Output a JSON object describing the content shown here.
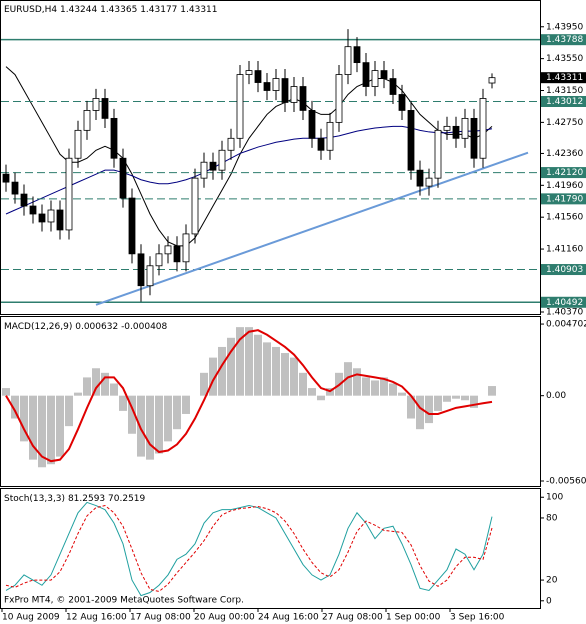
{
  "chart_data": [
    {
      "type": "candlestick",
      "title": "EURUSD,H4",
      "open": [
        1.421,
        1.42,
        1.4185,
        1.417,
        1.416,
        1.415,
        1.4165,
        1.414,
        1.423,
        1.4265,
        1.429,
        1.4305,
        1.428,
        1.423,
        1.418,
        1.411,
        1.407,
        1.4095,
        1.411,
        1.412,
        1.41,
        1.4135,
        1.4205,
        1.4225,
        1.4215,
        1.424,
        1.4255,
        1.4335,
        1.434,
        1.4325,
        1.4315,
        1.433,
        1.43,
        1.432,
        1.429,
        1.4255,
        1.424,
        1.4275,
        1.4335,
        1.437,
        1.435,
        1.432,
        1.434,
        1.433,
        1.431,
        1.429,
        1.4215,
        1.4195,
        1.4205,
        1.4265,
        1.427,
        1.4255,
        1.428,
        1.423,
        1.43244
      ],
      "high": [
        1.4222,
        1.4212,
        1.4197,
        1.4182,
        1.4172,
        1.4177,
        1.4177,
        1.4242,
        1.4277,
        1.4302,
        1.4317,
        1.4317,
        1.4292,
        1.4242,
        1.4192,
        1.4122,
        1.4107,
        1.4122,
        1.4132,
        1.4132,
        1.4147,
        1.4217,
        1.4237,
        1.4237,
        1.4252,
        1.4267,
        1.4347,
        1.4352,
        1.4352,
        1.4337,
        1.4342,
        1.4342,
        1.4332,
        1.4332,
        1.4302,
        1.4267,
        1.4287,
        1.4347,
        1.4392,
        1.4382,
        1.4362,
        1.4352,
        1.4352,
        1.4342,
        1.4322,
        1.4302,
        1.4227,
        1.4217,
        1.4277,
        1.4282,
        1.4282,
        1.4292,
        1.4292,
        1.4317,
        1.43365
      ],
      "low": [
        1.4188,
        1.4173,
        1.4158,
        1.4148,
        1.4138,
        1.4138,
        1.4128,
        1.4128,
        1.4218,
        1.4253,
        1.4278,
        1.4268,
        1.4218,
        1.4168,
        1.4098,
        1.405,
        1.4058,
        1.4083,
        1.4098,
        1.4088,
        1.4088,
        1.4123,
        1.4193,
        1.4203,
        1.4203,
        1.4228,
        1.4243,
        1.4323,
        1.4313,
        1.4303,
        1.4303,
        1.4288,
        1.4288,
        1.4278,
        1.4243,
        1.4228,
        1.4228,
        1.4263,
        1.4323,
        1.4338,
        1.4308,
        1.4308,
        1.4318,
        1.4298,
        1.4278,
        1.4203,
        1.4183,
        1.4183,
        1.4193,
        1.4253,
        1.4243,
        1.4243,
        1.4218,
        1.4218,
        1.43177
      ],
      "close": [
        1.42,
        1.4185,
        1.417,
        1.416,
        1.415,
        1.4165,
        1.414,
        1.423,
        1.4265,
        1.429,
        1.4305,
        1.428,
        1.423,
        1.418,
        1.411,
        1.407,
        1.4095,
        1.411,
        1.412,
        1.41,
        1.4135,
        1.4205,
        1.4225,
        1.4215,
        1.424,
        1.4255,
        1.4335,
        1.434,
        1.4325,
        1.4315,
        1.433,
        1.43,
        1.432,
        1.429,
        1.4255,
        1.424,
        1.4275,
        1.4335,
        1.437,
        1.435,
        1.432,
        1.434,
        1.433,
        1.431,
        1.429,
        1.4215,
        1.4195,
        1.4205,
        1.4265,
        1.427,
        1.4255,
        1.428,
        1.423,
        1.4305,
        1.43311
      ],
      "lines": [
        {
          "color": "#000000",
          "values": [
            1.4345,
            1.4335,
            1.4315,
            1.4295,
            1.4275,
            1.4255,
            1.4235,
            1.4225,
            1.4225,
            1.423,
            1.424,
            1.4245,
            1.424,
            1.423,
            1.421,
            1.4185,
            1.416,
            1.414,
            1.4125,
            1.412,
            1.412,
            1.413,
            1.415,
            1.417,
            1.419,
            1.421,
            1.4235,
            1.4255,
            1.427,
            1.4285,
            1.4295,
            1.43,
            1.4305,
            1.43,
            1.429,
            1.4285,
            1.4285,
            1.4295,
            1.431,
            1.432,
            1.4325,
            1.433,
            1.433,
            1.4325,
            1.4315,
            1.43,
            1.4285,
            1.4275,
            1.4265,
            1.426,
            1.426,
            1.426,
            1.4255,
            1.426,
            1.427
          ]
        },
        {
          "color": "#000080",
          "values": [
            1.416,
            1.4165,
            1.417,
            1.4175,
            1.418,
            1.4185,
            1.419,
            1.4195,
            1.42,
            1.4205,
            1.421,
            1.4215,
            1.4215,
            1.4212,
            1.4208,
            1.4203,
            1.42,
            1.4198,
            1.4198,
            1.42,
            1.4203,
            1.4207,
            1.4212,
            1.4218,
            1.4224,
            1.423,
            1.4236,
            1.424,
            1.4244,
            1.4247,
            1.425,
            1.4252,
            1.4254,
            1.4255,
            1.4255,
            1.4255,
            1.4256,
            1.4258,
            1.4261,
            1.4264,
            1.4266,
            1.4268,
            1.4269,
            1.427,
            1.427,
            1.4268,
            1.4265,
            1.4263,
            1.4262,
            1.4262,
            1.4263,
            1.4264,
            1.4264,
            1.4265,
            1.4267
          ]
        }
      ],
      "trendline": {
        "x": [
          10,
          58
        ],
        "values": [
          1.4046,
          1.4237
        ],
        "color": "#6a9ad8"
      },
      "levels": [
        {
          "value": 1.43788,
          "style": "solid"
        },
        {
          "value": 1.43012,
          "style": "dashed"
        },
        {
          "value": 1.4212,
          "label": "1.42120",
          "style": "dashed"
        },
        {
          "value": 1.4179,
          "label": "1.41790",
          "style": "dashed"
        },
        {
          "value": 1.40903,
          "style": "dashed"
        },
        {
          "value": 1.40492,
          "style": "solid"
        }
      ],
      "level_color": "#2e7d6e",
      "ylim": [
        1.4037,
        1.4406
      ],
      "yticks": [
        {
          "value": 1.4395,
          "label": "1.43950"
        },
        {
          "value": 1.4355,
          "label": "1.43550"
        },
        {
          "value": 1.4315,
          "label": "1.43150"
        },
        {
          "value": 1.4275,
          "label": "1.42750"
        },
        {
          "value": 1.4236,
          "label": "1.42360"
        },
        {
          "value": 1.4196,
          "label": "1.41960"
        },
        {
          "value": 1.4156,
          "label": "1.41560"
        },
        {
          "value": 1.4116,
          "label": "1.41160"
        },
        {
          "value": 1.4037,
          "label": "1.40370"
        }
      ],
      "x_labels": [
        "10 Aug 2009",
        "12 Aug 16:00",
        "17 Aug 08:00",
        "20 Aug 00:00",
        "24 Aug 16:00",
        "27 Aug 08:00",
        "1 Sep 00:00",
        "3 Sep 16:00"
      ]
    },
    {
      "type": "macd",
      "title": "MACD(12,26,9)",
      "histogram": {
        "color": "#c0c0c0",
        "values": [
          0.0005,
          -0.0015,
          -0.003,
          -0.0042,
          -0.0047,
          -0.0045,
          -0.004,
          -0.002,
          0.0002,
          0.0012,
          0.0018,
          0.0015,
          0.0008,
          -0.001,
          -0.0025,
          -0.004,
          -0.0042,
          -0.0038,
          -0.003,
          -0.0022,
          -0.0012,
          0.0,
          0.0015,
          0.0025,
          0.0032,
          0.0038,
          0.0045,
          0.0045,
          0.004,
          0.0035,
          0.0032,
          0.0028,
          0.0025,
          0.0015,
          0.0005,
          -0.0003,
          0.0005,
          0.0015,
          0.0022,
          0.0018,
          0.0012,
          0.001,
          0.0012,
          0.0008,
          0.0002,
          -0.0015,
          -0.0022,
          -0.0018,
          -0.001,
          -0.0004,
          -0.0002,
          -0.0003,
          -0.0008,
          0.0,
          0.000632
        ]
      },
      "signal": {
        "color": "#e00000",
        "values": [
          0.0,
          -0.001,
          -0.0022,
          -0.0033,
          -0.004,
          -0.0043,
          -0.0042,
          -0.0035,
          -0.0022,
          -0.0008,
          0.0005,
          0.0012,
          0.0012,
          0.0005,
          -0.0008,
          -0.0022,
          -0.0032,
          -0.0037,
          -0.0036,
          -0.0032,
          -0.0025,
          -0.0015,
          -0.0003,
          0.001,
          0.002,
          0.0029,
          0.0037,
          0.0042,
          0.0043,
          0.004,
          0.0036,
          0.0032,
          0.0027,
          0.002,
          0.0012,
          0.0005,
          0.0003,
          0.0007,
          0.0012,
          0.0014,
          0.0013,
          0.0012,
          0.0011,
          0.0009,
          0.0006,
          0.0,
          -0.0008,
          -0.0012,
          -0.0012,
          -0.001,
          -0.0008,
          -0.0007,
          -0.0006,
          -0.0005,
          -0.000408
        ]
      },
      "ylim": [
        -0.00593,
        0.0051
      ],
      "yticks": [
        0.004702,
        {
          "value": 0,
          "label": "0.00"
        },
        -0.005602
      ]
    },
    {
      "type": "stochastic",
      "title": "Stoch(13,3,3)",
      "main": {
        "color": "#20a0a0",
        "values": [
          10,
          15,
          25,
          20,
          15,
          25,
          45,
          65,
          85,
          95,
          92,
          88,
          75,
          55,
          20,
          5,
          8,
          15,
          25,
          40,
          45,
          55,
          75,
          85,
          88,
          88,
          90,
          92,
          90,
          85,
          80,
          65,
          50,
          35,
          25,
          20,
          25,
          45,
          70,
          85,
          75,
          60,
          70,
          72,
          55,
          35,
          12,
          10,
          20,
          30,
          50,
          45,
          30,
          45,
          81.2593
        ]
      },
      "signal": {
        "color": "#e00000",
        "values": [
          15,
          13,
          17,
          20,
          20,
          20,
          28,
          45,
          65,
          82,
          90,
          92,
          85,
          72,
          50,
          27,
          11,
          9,
          16,
          27,
          37,
          47,
          58,
          72,
          83,
          87,
          89,
          90,
          91,
          89,
          85,
          77,
          65,
          50,
          37,
          27,
          23,
          30,
          47,
          67,
          77,
          73,
          68,
          67,
          66,
          54,
          34,
          19,
          14,
          20,
          33,
          42,
          42,
          40,
          70.2519
        ]
      },
      "ylim": [
        -6,
        107
      ],
      "yticks": [
        100,
        80,
        20,
        0
      ]
    }
  ],
  "credit": "FxPro MT4, © 2001-2009 MetaQuotes Software Corp."
}
